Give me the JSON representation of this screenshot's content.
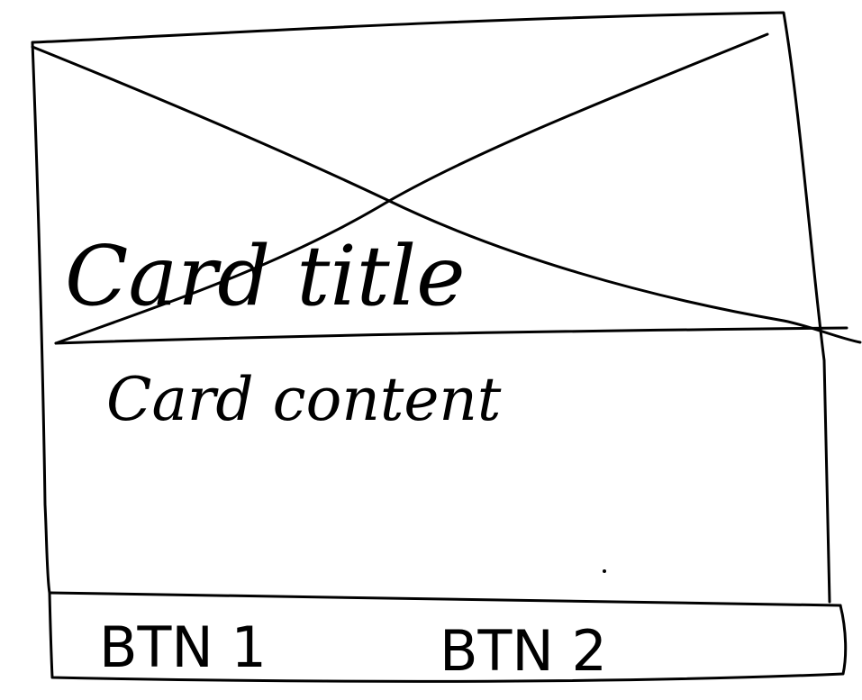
{
  "card": {
    "image_placeholder_icon": "crossed-box-image-icon",
    "title": "Card title",
    "content": "Card content"
  },
  "footer": {
    "buttons": [
      {
        "label": "BTN 1"
      },
      {
        "label": "BTN 2"
      }
    ]
  },
  "colors": {
    "ink": "#000000",
    "paper": "#ffffff"
  }
}
